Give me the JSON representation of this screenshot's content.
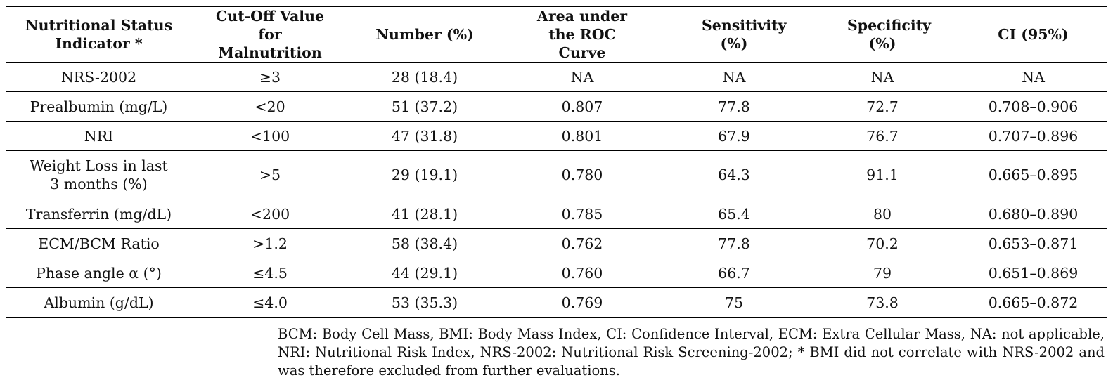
{
  "table": {
    "headers": [
      "Nutritional Status Indicator *",
      "Cut-Off Value for Malnutrition",
      "Number (%)",
      "Area under the ROC Curve",
      "Sensitivity (%)",
      "Specificity (%)",
      "CI (95%)"
    ],
    "rows": [
      [
        "NRS-2002",
        "≥3",
        "28 (18.4)",
        "NA",
        "NA",
        "NA",
        "NA"
      ],
      [
        "Prealbumin (mg/L)",
        "<20",
        "51 (37.2)",
        "0.807",
        "77.8",
        "72.7",
        "0.708–0.906"
      ],
      [
        "NRI",
        "<100",
        "47 (31.8)",
        "0.801",
        "67.9",
        "76.7",
        "0.707–0.896"
      ],
      [
        "Weight Loss in last 3 months (%)",
        ">5",
        "29 (19.1)",
        "0.780",
        "64.3",
        "91.1",
        "0.665–0.895"
      ],
      [
        "Transferrin (mg/dL)",
        "<200",
        "41 (28.1)",
        "0.785",
        "65.4",
        "80",
        "0.680–0.890"
      ],
      [
        "ECM/BCM Ratio",
        ">1.2",
        "58 (38.4)",
        "0.762",
        "77.8",
        "70.2",
        "0.653–0.871"
      ],
      [
        "Phase angle α (°)",
        "≤4.5",
        "44 (29.1)",
        "0.760",
        "66.7",
        "79",
        "0.651–0.869"
      ],
      [
        "Albumin (g/dL)",
        "≤4.0",
        "53 (35.3)",
        "0.769",
        "75",
        "73.8",
        "0.665–0.872"
      ]
    ]
  },
  "footnote": "BCM: Body Cell Mass, BMI: Body Mass Index, CI: Confidence Interval, ECM: Extra Cellular Mass, NA: not applicable, NRI: Nutritional Risk Index, NRS-2002: Nutritional Risk Screening-2002; * BMI did not correlate with NRS-2002 and was therefore excluded from further evaluations."
}
